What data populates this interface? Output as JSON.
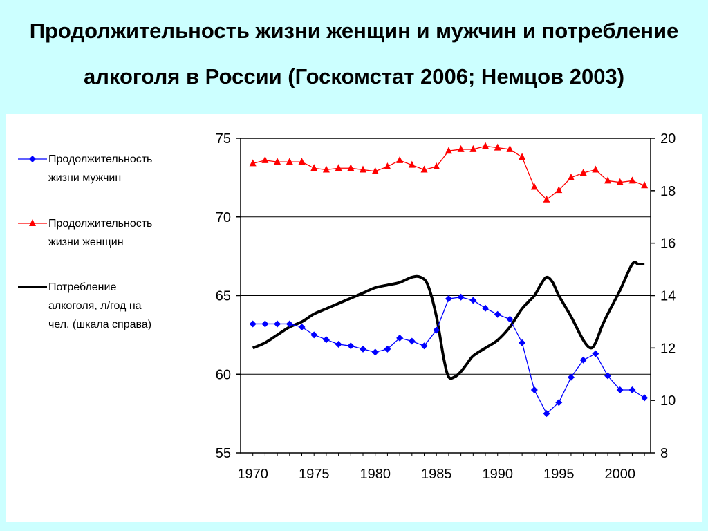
{
  "title": {
    "line1": "Продолжительность жизни женщин и мужчин и потребление",
    "line2": "алкоголя в России (Госкомстат 2006; Немцов 2003)"
  },
  "chart_data": {
    "type": "line",
    "x": [
      1970,
      1971,
      1972,
      1973,
      1974,
      1975,
      1976,
      1977,
      1978,
      1979,
      1980,
      1981,
      1982,
      1983,
      1984,
      1985,
      1986,
      1987,
      1988,
      1989,
      1990,
      1991,
      1992,
      1993,
      1994,
      1995,
      1996,
      1997,
      1998,
      1999,
      2000,
      2001,
      2002
    ],
    "xlim": [
      1969,
      2002.5
    ],
    "x_ticks": [
      1970,
      1975,
      1980,
      1985,
      1990,
      1995,
      2000
    ],
    "y_left": {
      "lim": [
        55,
        75
      ],
      "ticks": [
        55,
        60,
        65,
        70,
        75
      ]
    },
    "y_right": {
      "lim": [
        8,
        20
      ],
      "ticks": [
        8,
        10,
        12,
        14,
        16,
        18,
        20
      ]
    },
    "gridlines": [
      60,
      65,
      70
    ],
    "series": [
      {
        "name": "Продолжительность жизни мужчин",
        "legend_lines": [
          "Продолжительность",
          "жизни мужчин"
        ],
        "axis": "left",
        "color": "#0000ff",
        "marker": "diamond",
        "values": [
          63.2,
          63.2,
          63.2,
          63.2,
          63.0,
          62.5,
          62.2,
          61.9,
          61.8,
          61.6,
          61.4,
          61.6,
          62.3,
          62.1,
          61.8,
          62.8,
          64.8,
          64.9,
          64.7,
          64.2,
          63.8,
          63.5,
          62.0,
          59.0,
          57.5,
          58.2,
          59.8,
          60.9,
          61.3,
          59.9,
          59.0,
          59.0,
          58.5
        ]
      },
      {
        "name": "Продолжительность жизни женщин",
        "legend_lines": [
          "Продолжительность",
          "жизни женщин"
        ],
        "axis": "left",
        "color": "#ff0000",
        "marker": "triangle",
        "values": [
          73.4,
          73.6,
          73.5,
          73.5,
          73.5,
          73.1,
          73.0,
          73.1,
          73.1,
          73.0,
          72.9,
          73.2,
          73.6,
          73.3,
          73.0,
          73.2,
          74.2,
          74.3,
          74.3,
          74.5,
          74.4,
          74.3,
          73.8,
          71.9,
          71.1,
          71.7,
          72.5,
          72.8,
          73.0,
          72.3,
          72.2,
          72.3,
          72.0
        ]
      },
      {
        "name": "Потребление алкоголя, л/год на чел. (шкала справа)",
        "legend_lines": [
          "Потребление",
          "алкоголя, л/год на",
          "чел. (шкала справа)"
        ],
        "axis": "right",
        "color": "#000000",
        "marker": "none",
        "x": [
          1970,
          1971,
          1972,
          1973,
          1974,
          1975,
          1976,
          1977,
          1978,
          1979,
          1980,
          1981,
          1982,
          1983,
          1983.7,
          1984.3,
          1985,
          1985.6,
          1986,
          1986.5,
          1987,
          1987.5,
          1988,
          1989,
          1990,
          1991,
          1992,
          1993,
          1993.5,
          1994,
          1994.5,
          1995,
          1996,
          1997,
          1997.6,
          1998,
          1998.5,
          1999,
          2000,
          2001,
          2001.5,
          2002
        ],
        "values": [
          12.0,
          12.2,
          12.5,
          12.8,
          13.0,
          13.3,
          13.5,
          13.7,
          13.9,
          14.1,
          14.3,
          14.4,
          14.5,
          14.7,
          14.7,
          14.4,
          13.2,
          11.6,
          10.9,
          10.9,
          11.1,
          11.4,
          11.7,
          12.0,
          12.3,
          12.8,
          13.5,
          14.0,
          14.4,
          14.7,
          14.5,
          14.0,
          13.2,
          12.3,
          12.0,
          12.2,
          12.8,
          13.3,
          14.2,
          15.2,
          15.2,
          15.2
        ]
      }
    ]
  }
}
